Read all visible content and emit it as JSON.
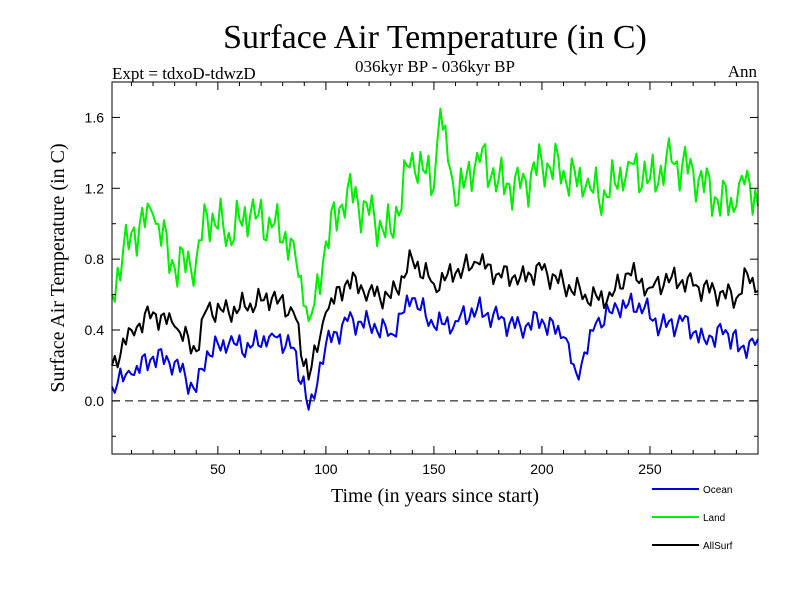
{
  "chart_data": {
    "type": "line",
    "title": "Surface Air Temperature (in C)",
    "subtitle_left": "Expt = tdxoD-tdwzD",
    "subtitle_center": "036kyr BP - 036kyr BP",
    "subtitle_right": "Ann",
    "xlabel": "Time (in years since start)",
    "ylabel": "Surface Air Temperature (in C)",
    "xlim": [
      1,
      300
    ],
    "ylim": [
      -0.3,
      1.8
    ],
    "xticks": [
      50,
      100,
      150,
      200,
      250
    ],
    "yticks": [
      0.0,
      0.4,
      0.8,
      1.2,
      1.6
    ],
    "ytick_labels": [
      "0.0",
      "0.4",
      "0.8",
      "1.2",
      "1.6"
    ],
    "zero_line": "dashed",
    "legend_position": "bottom-right",
    "series": [
      {
        "name": "Ocean",
        "color": "#0000dd",
        "x": [
          1,
          10,
          20,
          30,
          40,
          45,
          55,
          65,
          75,
          85,
          92,
          100,
          110,
          120,
          130,
          140,
          150,
          160,
          170,
          180,
          190,
          200,
          210,
          217,
          225,
          235,
          245,
          255,
          265,
          275,
          285,
          292,
          300
        ],
        "values": [
          0.08,
          0.15,
          0.25,
          0.22,
          0.05,
          0.28,
          0.32,
          0.3,
          0.38,
          0.3,
          -0.05,
          0.32,
          0.45,
          0.44,
          0.38,
          0.58,
          0.42,
          0.45,
          0.52,
          0.46,
          0.42,
          0.46,
          0.36,
          0.12,
          0.44,
          0.52,
          0.55,
          0.42,
          0.45,
          0.35,
          0.4,
          0.3,
          0.35
        ]
      },
      {
        "name": "Land",
        "color": "#00ee00",
        "x": [
          1,
          10,
          20,
          30,
          40,
          45,
          55,
          65,
          75,
          85,
          92,
          100,
          110,
          120,
          130,
          140,
          150,
          153,
          160,
          170,
          180,
          190,
          200,
          210,
          220,
          230,
          240,
          250,
          260,
          270,
          280,
          290,
          295,
          300
        ],
        "values": [
          0.6,
          0.95,
          1.05,
          0.75,
          0.8,
          1.05,
          0.95,
          1.05,
          0.98,
          0.9,
          0.45,
          0.9,
          1.2,
          1.05,
          0.95,
          1.4,
          1.2,
          1.65,
          1.1,
          1.4,
          1.25,
          1.2,
          1.35,
          1.3,
          1.2,
          1.15,
          1.35,
          1.25,
          1.35,
          1.3,
          1.15,
          1.1,
          1.3,
          1.1
        ]
      },
      {
        "name": "AllSurf",
        "color": "#000000",
        "x": [
          1,
          10,
          20,
          30,
          40,
          45,
          55,
          65,
          75,
          85,
          92,
          100,
          110,
          120,
          130,
          140,
          150,
          160,
          170,
          180,
          190,
          200,
          210,
          220,
          230,
          240,
          250,
          260,
          270,
          280,
          290,
          295,
          300
        ],
        "values": [
          0.2,
          0.4,
          0.5,
          0.42,
          0.28,
          0.52,
          0.5,
          0.55,
          0.58,
          0.5,
          0.12,
          0.5,
          0.68,
          0.62,
          0.58,
          0.8,
          0.66,
          0.72,
          0.78,
          0.72,
          0.7,
          0.74,
          0.66,
          0.6,
          0.56,
          0.72,
          0.64,
          0.7,
          0.65,
          0.62,
          0.58,
          0.72,
          0.62
        ]
      }
    ]
  },
  "legend": {
    "items": [
      {
        "label": "Ocean",
        "color": "#0000dd"
      },
      {
        "label": "Land",
        "color": "#00ee00"
      },
      {
        "label": "AllSurf",
        "color": "#000000"
      }
    ]
  }
}
